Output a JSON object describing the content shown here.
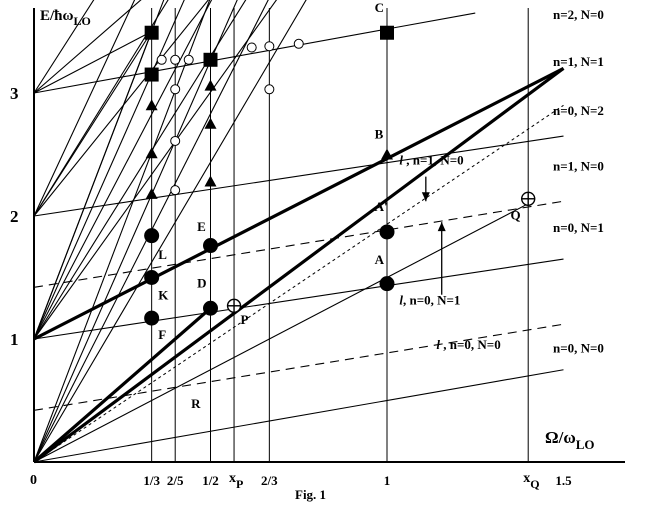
{
  "chart_data": {
    "type": "line",
    "title": "",
    "caption": "Fig. 1",
    "xlabel_main": "Ω/ω",
    "xlabel_sub": "LO",
    "ylabel_main": "E/ħω",
    "ylabel_sub": "LO",
    "xlim": [
      0,
      1.58
    ],
    "ylim": [
      0,
      3.85
    ],
    "origin_label": "0",
    "x_ticks": [
      {
        "x": 0.3333,
        "label": "1/3"
      },
      {
        "x": 0.4,
        "label": "2/5"
      },
      {
        "x": 0.5,
        "label": "1/2"
      },
      {
        "x": 0.6667,
        "label": "2/3"
      },
      {
        "x": 1.0,
        "label": "1"
      },
      {
        "x": 1.5,
        "label": "1.5"
      }
    ],
    "x_symbol_ticks": [
      {
        "x": 0.5667,
        "main": "x",
        "sub": "P"
      },
      {
        "x": 1.4,
        "main": "x",
        "sub": "Q"
      }
    ],
    "y_ticks": [
      {
        "y": 1,
        "label": "1"
      },
      {
        "y": 2,
        "label": "2"
      },
      {
        "y": 3,
        "label": "3"
      }
    ],
    "vertical_guides": [
      0.3333,
      0.4,
      0.5,
      0.5667,
      0.6667,
      1.0,
      1.4
    ],
    "solid_lines": [
      {
        "x0": 0,
        "y0": 0,
        "x1": 1.5,
        "y1": 0.75
      },
      {
        "x0": 0,
        "y0": 1.0,
        "x1": 1.5,
        "y1": 1.65
      },
      {
        "x0": 0,
        "y0": 2.0,
        "x1": 1.5,
        "y1": 2.65
      },
      {
        "x0": 0,
        "y0": 3.0,
        "x1": 1.25,
        "y1": 3.65
      },
      {
        "x0": 0,
        "y0": 0,
        "x1": 1.4,
        "y1": 2.1
      },
      {
        "x0": 0,
        "y0": 1.0,
        "x1": 0.3333,
        "y1": 3.5
      },
      {
        "x0": 0,
        "y0": 2.0,
        "x1": 0.3333,
        "y1": 3.5
      },
      {
        "x0": 0,
        "y0": 3.0,
        "x1": 0.3333,
        "y1": 3.5
      },
      {
        "x0": 0,
        "y0": 0,
        "x1": 0.51,
        "y1": 3.85
      },
      {
        "x0": 0,
        "y0": 0,
        "x1": 0.59,
        "y1": 3.85
      },
      {
        "x0": 0,
        "y0": 0,
        "x1": 0.68,
        "y1": 3.85
      },
      {
        "x0": 0,
        "y0": 0,
        "x1": 0.79,
        "y1": 3.85
      },
      {
        "x0": 0,
        "y0": 1.0,
        "x1": 0.38,
        "y1": 3.85
      },
      {
        "x0": 0,
        "y0": 1.0,
        "x1": 0.44,
        "y1": 3.85
      },
      {
        "x0": 0,
        "y0": 1.0,
        "x1": 0.52,
        "y1": 3.85
      },
      {
        "x0": 0,
        "y0": 1.0,
        "x1": 0.62,
        "y1": 3.85
      },
      {
        "x0": 0,
        "y0": 1.0,
        "x1": 0.71,
        "y1": 3.85
      },
      {
        "x0": 0,
        "y0": 2.0,
        "x1": 0.3,
        "y1": 3.85
      },
      {
        "x0": 0,
        "y0": 2.0,
        "x1": 0.4,
        "y1": 3.85
      },
      {
        "x0": 0,
        "y0": 2.0,
        "x1": 0.52,
        "y1": 3.85
      },
      {
        "x0": 0,
        "y0": 3.0,
        "x1": 0.19,
        "y1": 3.85
      },
      {
        "x0": 0,
        "y0": 3.0,
        "x1": 0.34,
        "y1": 3.85
      }
    ],
    "thick_lines": [
      {
        "x0": 0,
        "y0": 0,
        "x1": 1.5,
        "y1": 3.2
      },
      {
        "x0": 0,
        "y0": 1.0,
        "x1": 1.5,
        "y1": 3.2
      },
      {
        "x0": 0,
        "y0": 0,
        "x1": 0.5,
        "y1": 1.25
      }
    ],
    "dashed_lines": [
      {
        "x0": 0,
        "y0": 0.42,
        "x1": 1.5,
        "y1": 1.12
      },
      {
        "x0": 0,
        "y0": 1.42,
        "x1": 1.5,
        "y1": 2.12
      }
    ],
    "dotted_lines": [
      {
        "x0": 0,
        "y0": 0,
        "x1": 1.5,
        "y1": 2.9
      }
    ],
    "filled_circles": [
      {
        "x": 0.3333,
        "y": 1.84
      },
      {
        "x": 0.3333,
        "y": 1.5
      },
      {
        "x": 0.3333,
        "y": 1.17
      },
      {
        "x": 0.5,
        "y": 1.76
      },
      {
        "x": 0.5,
        "y": 1.25
      },
      {
        "x": 1.0,
        "y": 1.87
      },
      {
        "x": 1.0,
        "y": 1.45
      }
    ],
    "open_circles": [
      {
        "x": 0.3617,
        "y": 3.27
      },
      {
        "x": 0.4,
        "y": 3.27
      },
      {
        "x": 0.4383,
        "y": 3.27
      },
      {
        "x": 0.6167,
        "y": 3.37
      },
      {
        "x": 0.6667,
        "y": 3.38
      },
      {
        "x": 0.75,
        "y": 3.4
      },
      {
        "x": 0.4,
        "y": 3.03
      },
      {
        "x": 0.4,
        "y": 2.61
      },
      {
        "x": 0.4,
        "y": 2.21
      },
      {
        "x": 0.6667,
        "y": 3.03
      }
    ],
    "crossed_circles": [
      {
        "x": 0.5667,
        "y": 1.27
      },
      {
        "x": 1.4,
        "y": 2.14
      }
    ],
    "squares": [
      {
        "x": 0.3333,
        "y": 3.49
      },
      {
        "x": 0.3333,
        "y": 3.15
      },
      {
        "x": 0.5,
        "y": 3.27
      },
      {
        "x": 1.0,
        "y": 3.49
      }
    ],
    "triangles": [
      {
        "x": 0.3333,
        "y": 2.9
      },
      {
        "x": 0.3333,
        "y": 2.51
      },
      {
        "x": 0.3333,
        "y": 2.18
      },
      {
        "x": 0.5,
        "y": 3.06
      },
      {
        "x": 0.5,
        "y": 2.75
      },
      {
        "x": 0.5,
        "y": 2.28
      },
      {
        "x": 1.0,
        "y": 2.5
      }
    ],
    "point_labels": [
      {
        "text": "C",
        "x": 0.965,
        "y": 3.66
      },
      {
        "text": "B",
        "x": 0.965,
        "y": 2.63
      },
      {
        "text": "A'",
        "x": 0.965,
        "y": 2.04
      },
      {
        "text": "A",
        "x": 0.965,
        "y": 1.61
      },
      {
        "text": "E",
        "x": 0.462,
        "y": 1.88
      },
      {
        "text": "D",
        "x": 0.462,
        "y": 1.42
      },
      {
        "text": "L",
        "x": 0.352,
        "y": 1.65
      },
      {
        "text": "K",
        "x": 0.352,
        "y": 1.32
      },
      {
        "text": "F",
        "x": 0.352,
        "y": 1.0
      },
      {
        "text": "P",
        "x": 0.585,
        "y": 1.12
      },
      {
        "text": "Q",
        "x": 1.35,
        "y": 1.97
      },
      {
        "text": "R",
        "x": 0.445,
        "y": 0.44
      }
    ],
    "branch_labels": [
      {
        "text": "n=2, N=0",
        "x": 1.505,
        "y": 3.6
      },
      {
        "text": "n=1, N=1",
        "x": 1.505,
        "y": 3.22
      },
      {
        "text": "n=0, N=2",
        "x": 1.505,
        "y": 2.82
      },
      {
        "text": "n=1, N=0",
        "x": 1.505,
        "y": 2.37
      },
      {
        "text": "n=0, N=1",
        "x": 1.505,
        "y": 1.87
      },
      {
        "text": "n=0, N=0",
        "x": 1.505,
        "y": 0.89
      }
    ],
    "line_annotations": [
      {
        "italic": "l",
        "text": " , n=1, N=0",
        "x": 1.035,
        "y": 2.42
      },
      {
        "italic": "l",
        "text": ", n=0, N=1",
        "x": 1.035,
        "y": 1.28
      },
      {
        "italic": "l",
        "text": " , n=0, N=0",
        "x": 1.14,
        "y": 0.92
      }
    ],
    "arrows": [
      {
        "x0": 1.11,
        "y0": 2.32,
        "x1": 1.11,
        "y1": 2.12
      },
      {
        "x0": 1.155,
        "y0": 1.36,
        "x1": 1.155,
        "y1": 1.95
      }
    ]
  }
}
